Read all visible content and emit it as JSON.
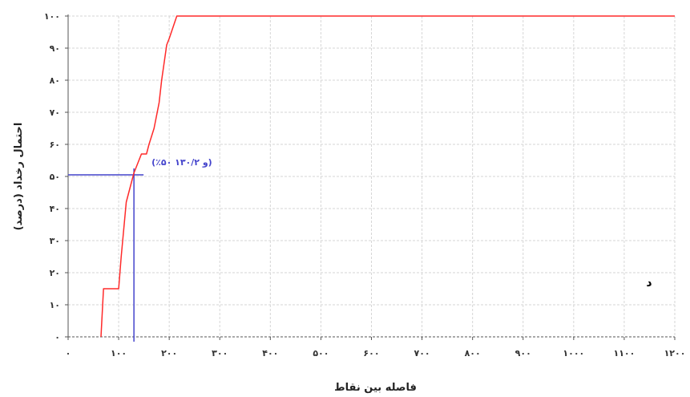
{
  "chart_data": {
    "type": "line",
    "xlabel": "فاصله بین نقاط",
    "ylabel": "احتمال رخداد (درصد)",
    "xlim": [
      0,
      1200
    ],
    "ylim": [
      0,
      100
    ],
    "x_ticks": [
      0,
      100,
      200,
      300,
      400,
      500,
      600,
      700,
      800,
      900,
      1000,
      1100,
      1200
    ],
    "x_tick_labels": [
      "۰",
      "۱۰۰",
      "۲۰۰",
      "۳۰۰",
      "۴۰۰",
      "۵۰۰",
      "۶۰۰",
      "۷۰۰",
      "۸۰۰",
      "۹۰۰",
      "۱۰۰۰",
      "۱۱۰۰",
      "۱۲۰۰"
    ],
    "y_ticks": [
      0,
      10,
      20,
      30,
      40,
      50,
      60,
      70,
      80,
      90,
      100
    ],
    "y_tick_labels": [
      "۰",
      "۱۰",
      "۲۰",
      "۳۰",
      "۴۰",
      "۵۰",
      "۶۰",
      "۷۰",
      "۸۰",
      "۹۰",
      "۱۰۰"
    ],
    "grid": true,
    "series": [
      {
        "color": "#ff2a2a",
        "x": [
          65,
          70,
          100,
          105,
          115,
          125,
          130,
          135,
          145,
          155,
          160,
          170,
          180,
          185,
          195,
          200,
          215,
          225,
          1200
        ],
        "y": [
          0,
          15,
          15,
          25,
          42,
          48,
          51,
          53,
          57,
          57,
          60,
          65,
          73,
          80,
          91,
          93,
          100,
          100,
          100
        ]
      }
    ],
    "reference_point": {
      "x": 130.2,
      "y": 50,
      "color": "#4444cc",
      "label": "(٪۵۰ و ۱۳۰/۲)"
    },
    "panel_label": "د"
  }
}
